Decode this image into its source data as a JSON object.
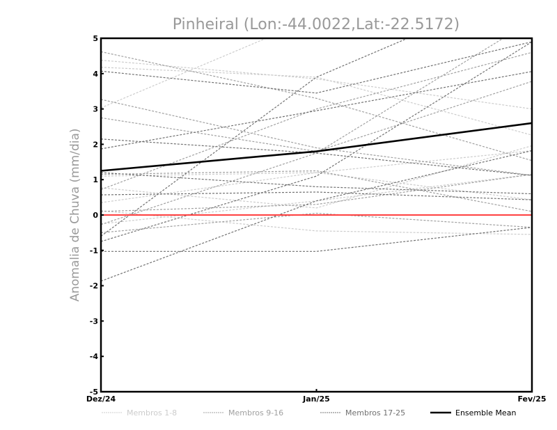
{
  "chart_data": {
    "type": "line",
    "title": "Pinheiral (Lon:-44.0022,Lat:-22.5172)",
    "ylabel": "Anomalia de Chuva (mm/dia)",
    "xlabel": "",
    "categories": [
      "Dez/24",
      "Jan/25",
      "Fev/25"
    ],
    "ylim": [
      -5,
      5
    ],
    "yticks": [
      "5",
      "4",
      "3",
      "2",
      "1",
      "0",
      "-1",
      "-2",
      "-3",
      "-4",
      "-5"
    ],
    "ytick_values": [
      5,
      4,
      3,
      2,
      1,
      0,
      -1,
      -2,
      -3,
      -4,
      -5
    ],
    "reference_line": {
      "value": 0,
      "color": "#ff4040"
    },
    "groups": [
      {
        "name": "Membros 1-8",
        "color": "#cccccc",
        "series": [
          [
            4.38,
            3.85,
            3.0
          ],
          [
            4.18,
            3.9,
            2.26
          ],
          [
            3.03,
            5.6,
            6.5
          ],
          [
            0.77,
            0.2,
            1.96
          ],
          [
            0.35,
            1.2,
            1.82
          ],
          [
            0.12,
            -0.45,
            -0.55
          ],
          [
            -0.25,
            0.4,
            1.15
          ],
          [
            1.1,
            1.2,
            0.43
          ]
        ]
      },
      {
        "name": "Membros 9-16",
        "color": "#a0a0a0",
        "series": [
          [
            4.62,
            3.3,
            1.54
          ],
          [
            3.27,
            1.9,
            1.12
          ],
          [
            2.75,
            1.8,
            3.78
          ],
          [
            0.72,
            3.0,
            4.6
          ],
          [
            -0.27,
            1.75,
            5.5
          ],
          [
            1.15,
            1.25,
            0.1
          ],
          [
            -0.5,
            0.05,
            -0.35
          ],
          [
            0.1,
            0.3,
            1.15
          ]
        ]
      },
      {
        "name": "Membros 17-25",
        "color": "#707070",
        "series": [
          [
            4.07,
            3.45,
            4.9
          ],
          [
            2.15,
            1.75,
            1.12
          ],
          [
            1.87,
            2.95,
            4.06
          ],
          [
            1.2,
            0.8,
            0.6
          ],
          [
            0.57,
            0.65,
            0.43
          ],
          [
            -0.6,
            3.9,
            6.5
          ],
          [
            -0.75,
            1.1,
            4.9
          ],
          [
            -1.03,
            -1.03,
            -0.35
          ],
          [
            -1.87,
            0.4,
            1.82
          ]
        ]
      }
    ],
    "ensemble_mean": {
      "name": "Ensemble Mean",
      "color": "#000000",
      "values": [
        1.25,
        1.8,
        2.6
      ]
    },
    "legend_placement": "bottom"
  }
}
